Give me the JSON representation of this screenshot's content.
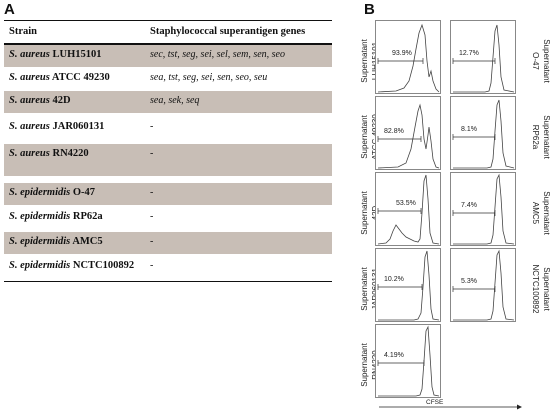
{
  "panel_a_letter": "A",
  "panel_b_letter": "B",
  "table": {
    "headers": {
      "strain": "Strain",
      "genes": "Staphylococcal superantigen genes"
    },
    "rows": [
      {
        "species": "S. aureus",
        "strain": "LUH15101",
        "genes": "sec, tst, seg, sei, sel, sem, sen, seo",
        "shaded": true
      },
      {
        "species": "S. aureus",
        "strain": "ATCC 49230",
        "genes": "sea, tst, seg, sei, sen, seo, seu",
        "shaded": false
      },
      {
        "species": "S. aureus",
        "strain": "42D",
        "genes": "sea, sek, seq",
        "shaded": true
      },
      {
        "species": "S. aureus",
        "strain": "JAR060131",
        "genes": "-",
        "shaded": false
      },
      {
        "species": "S. aureus",
        "strain": "RN4220",
        "genes": "-",
        "shaded": true
      },
      {
        "species": "S. epidermidis",
        "strain": "O-47",
        "genes": "-",
        "shaded": true
      },
      {
        "species": "S. epidermidis",
        "strain": "RP62a",
        "genes": "-",
        "shaded": false
      },
      {
        "species": "S. epidermidis",
        "strain": "AMC5",
        "genes": "-",
        "shaded": true
      },
      {
        "species": "S. epidermidis",
        "strain": "NCTC100892",
        "genes": "-",
        "shaded": false
      }
    ]
  },
  "histograms": {
    "supernatant_word": "Supernatant",
    "axis_label": "CFSE",
    "left": [
      {
        "strain": "LUH15101",
        "percent": "93.9%"
      },
      {
        "strain": "ATCC 49230",
        "percent": "82.8%"
      },
      {
        "strain": "42D",
        "percent": "53.5%"
      },
      {
        "strain": "JAR060131",
        "percent": "10.2%"
      },
      {
        "strain": "RN4220",
        "percent": "4.19%"
      }
    ],
    "right": [
      {
        "strain": "O-47",
        "percent": "12.7%"
      },
      {
        "strain": "RP62a",
        "percent": "8.1%"
      },
      {
        "strain": "AMC5",
        "percent": "7.4%"
      },
      {
        "strain": "NCTC100892",
        "percent": "5.3%"
      }
    ]
  }
}
